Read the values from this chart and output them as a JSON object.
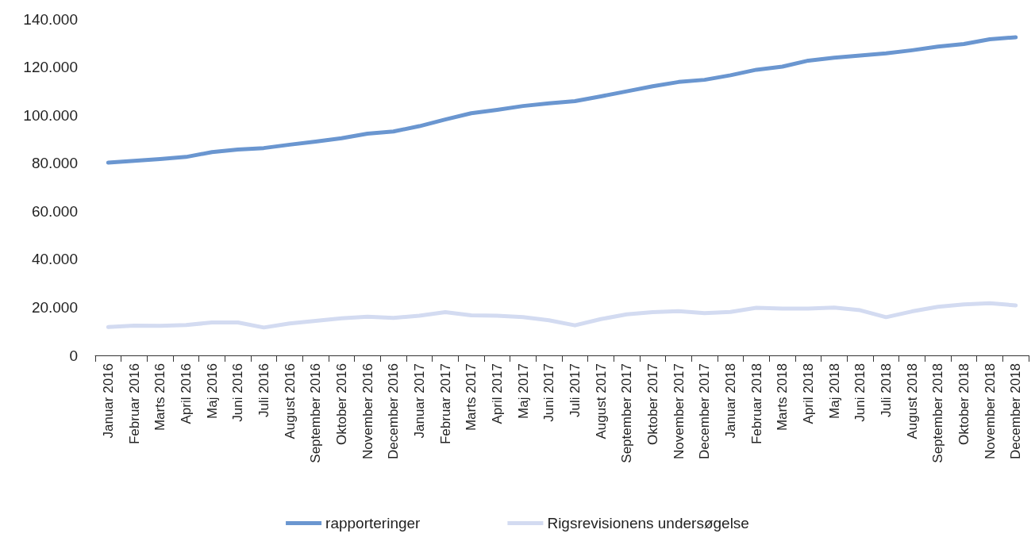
{
  "chart_data": {
    "type": "line",
    "categories": [
      "Januar 2016",
      "Februar 2016",
      "Marts 2016",
      "April 2016",
      "Maj 2016",
      "Juni 2016",
      "Juli 2016",
      "August 2016",
      "September 2016",
      "Oktober 2016",
      "November 2016",
      "December 2016",
      "Januar 2017",
      "Februar 2017",
      "Marts 2017",
      "April 2017",
      "Maj 2017",
      "Juni 2017",
      "Juli 2017",
      "August 2017",
      "September 2017",
      "Oktober 2017",
      "November 2017",
      "December 2017",
      "Januar 2018",
      "Februar 2018",
      "Marts 2018",
      "April 2018",
      "Maj 2018",
      "Juni 2018",
      "Juli 2018",
      "August 2018",
      "September 2018",
      "Oktober 2018",
      "November 2018",
      "December 2018"
    ],
    "series": [
      {
        "name": "rapporteringer",
        "color": "#6a96d0",
        "values": [
          80200,
          81000,
          81700,
          82600,
          84600,
          85700,
          86300,
          87700,
          89000,
          90400,
          92300,
          93200,
          95400,
          98200,
          100800,
          102200,
          103800,
          104900,
          105800,
          107800,
          109900,
          112000,
          113800,
          114700,
          116600,
          118900,
          120200,
          122700,
          123900,
          124800,
          125700,
          127000,
          128500,
          129600,
          131600,
          132400
        ]
      },
      {
        "name": "Rigsrevisionens undersøgelse",
        "color": "#d3dbf1",
        "values": [
          11800,
          12400,
          12300,
          12600,
          13700,
          13700,
          11600,
          13300,
          14400,
          15400,
          16100,
          15600,
          16500,
          18000,
          16700,
          16500,
          15900,
          14600,
          12500,
          15100,
          17100,
          18000,
          18400,
          17600,
          18100,
          19800,
          19500,
          19500,
          19900,
          18800,
          15900,
          18300,
          20200,
          21200,
          21700,
          20800
        ]
      }
    ],
    "ylim": [
      0,
      140000
    ],
    "yticks": [
      {
        "value": 0,
        "label": "0"
      },
      {
        "value": 20000,
        "label": "20.000"
      },
      {
        "value": 40000,
        "label": "40.000"
      },
      {
        "value": 60000,
        "label": "60.000"
      },
      {
        "value": 80000,
        "label": "80.000"
      },
      {
        "value": 100000,
        "label": "100.000"
      },
      {
        "value": 120000,
        "label": "120.000"
      },
      {
        "value": 140000,
        "label": "140.000"
      }
    ],
    "grid": false,
    "legend": "bottom",
    "marker": "none",
    "line_style": "solid"
  }
}
